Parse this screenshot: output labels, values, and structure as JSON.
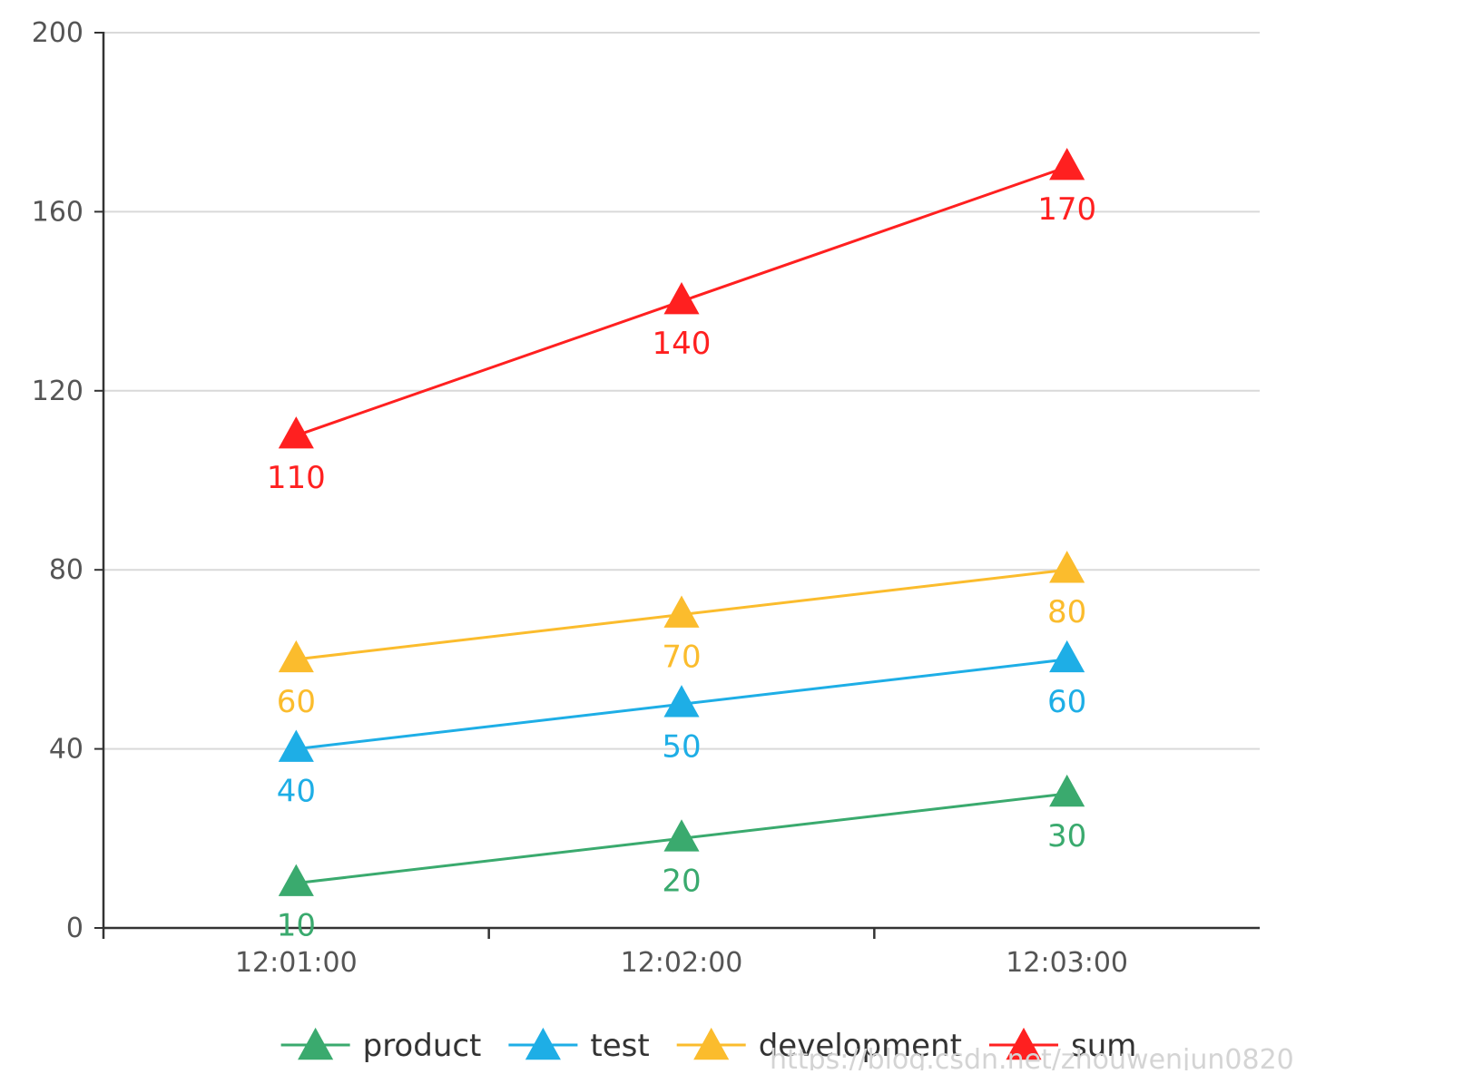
{
  "chart_data": {
    "type": "line",
    "categories": [
      "12:01:00",
      "12:02:00",
      "12:03:00"
    ],
    "series": [
      {
        "name": "product",
        "values": [
          10,
          20,
          30
        ],
        "color": "#3aaa6e",
        "marker": "triangle"
      },
      {
        "name": "test",
        "values": [
          40,
          50,
          60
        ],
        "color": "#1eaee6",
        "marker": "triangle"
      },
      {
        "name": "development",
        "values": [
          60,
          70,
          80
        ],
        "color": "#fbbc2d",
        "marker": "triangle"
      },
      {
        "name": "sum",
        "values": [
          110,
          140,
          170
        ],
        "color": "#ff2020",
        "marker": "triangle"
      }
    ],
    "yticks": [
      0,
      40,
      80,
      120,
      160,
      200
    ],
    "ylim": [
      0,
      200
    ],
    "grid": true,
    "legend": "bottom-center",
    "data_labels": "below"
  },
  "watermark": "https://blog.csdn.net/zhouwenjun0820"
}
